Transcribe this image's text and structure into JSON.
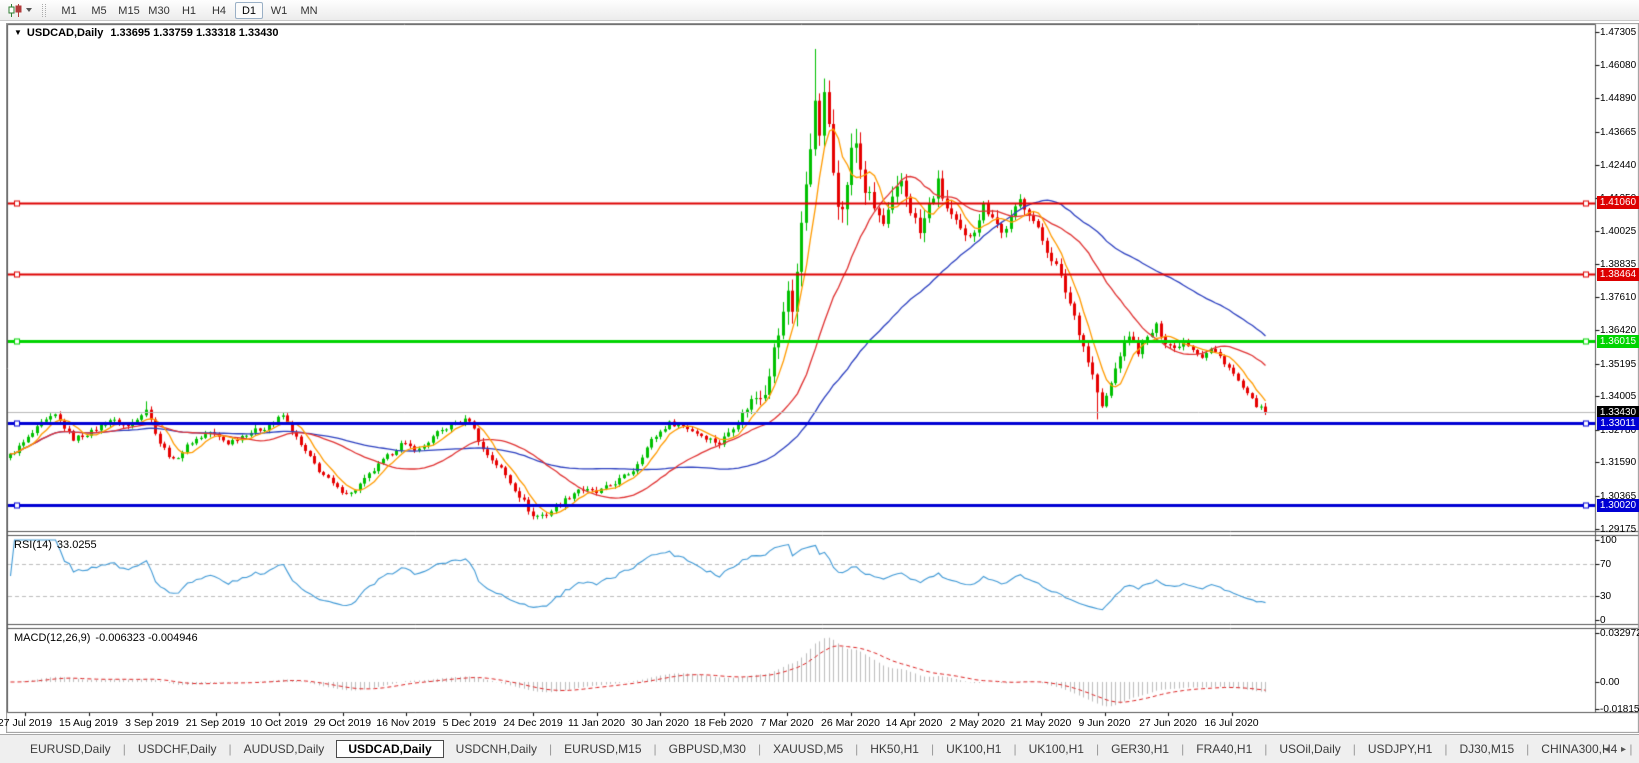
{
  "toolbar": {
    "icon": "candlestick-chart-icon",
    "timeframes": [
      "M1",
      "M5",
      "M15",
      "M30",
      "H1",
      "H4",
      "D1",
      "W1",
      "MN"
    ],
    "active_timeframe": "D1"
  },
  "window_title": {
    "toggle": "▼",
    "symbol": "USDCAD,Daily",
    "ohlc": "1.33695 1.33759 1.33318 1.33430"
  },
  "rsi_label": {
    "name": "RSI(14)",
    "value": "33.0255"
  },
  "macd_label": {
    "name": "MACD(12,26,9)",
    "value": "-0.006323 -0.004946"
  },
  "tabs": {
    "items": [
      "EURUSD,Daily",
      "USDCHF,Daily",
      "AUDUSD,Daily",
      "USDCAD,Daily",
      "USDCNH,Daily",
      "EURUSD,M15",
      "GBPUSD,M30",
      "XAUUSD,M5",
      "HK50,H1",
      "UK100,H1",
      "UK100,H1",
      "GER30,H1",
      "FRA40,H1",
      "USOil,Daily",
      "USDJPY,H1",
      "DJ30,M15",
      "CHINA300,H4"
    ],
    "active": "USDCAD,Daily",
    "separator": "|",
    "scroll_left": "◂",
    "scroll_right": "▸"
  },
  "chart_data": {
    "type": "candlestick",
    "title": "USDCAD,Daily",
    "ohlc_header": {
      "open": "1.33695",
      "high": "1.33759",
      "low": "1.33318",
      "close": "1.33430"
    },
    "y_tick_labels": [
      "1.47305",
      "1.46080",
      "1.44890",
      "1.43665",
      "1.42440",
      "1.41250",
      "1.40025",
      "1.38835",
      "1.37610",
      "1.36420",
      "1.35195",
      "1.34005",
      "1.32780",
      "1.31590",
      "1.30365",
      "1.29175"
    ],
    "x_tick_labels": [
      "27 Jul 2019",
      "15 Aug 2019",
      "3 Sep 2019",
      "21 Sep 2019",
      "10 Oct 2019",
      "29 Oct 2019",
      "16 Nov 2019",
      "5 Dec 2019",
      "24 Dec 2019",
      "11 Jan 2020",
      "30 Jan 2020",
      "18 Feb 2020",
      "7 Mar 2020",
      "26 Mar 2020",
      "14 Apr 2020",
      "2 May 2020",
      "21 May 2020",
      "9 Jun 2020",
      "27 Jun 2020",
      "16 Jul 2020"
    ],
    "rsi_axis_labels": [
      "100",
      "70",
      "30",
      "0"
    ],
    "macd_axis_labels": [
      "0.032972",
      "0.00",
      "-0.018154"
    ],
    "horizontal_lines": [
      {
        "price": 1.4106,
        "label": "1.41060",
        "color": "#dd0000",
        "width": 2
      },
      {
        "price": 1.38464,
        "label": "1.38464",
        "color": "#dd0000",
        "width": 2
      },
      {
        "price": 1.36015,
        "label": "1.36015",
        "color": "#00d400",
        "width": 3
      },
      {
        "price": 1.33011,
        "label": "1.33011",
        "color": "#0000d4",
        "width": 3
      },
      {
        "price": 1.3002,
        "label": "1.30020",
        "color": "#0000d4",
        "width": 3
      }
    ],
    "bid_line": {
      "price": 1.3343,
      "label": "1.33430",
      "line_color": "#b8b8b8",
      "label_bg": "#000000"
    },
    "candle_count": 277,
    "first_open": 1.3175,
    "last_close": 1.3343,
    "close_keypoints": [
      [
        0,
        1.3185
      ],
      [
        3,
        1.323
      ],
      [
        7,
        1.33
      ],
      [
        10,
        1.333
      ],
      [
        14,
        1.3245
      ],
      [
        18,
        1.327
      ],
      [
        22,
        1.3315
      ],
      [
        26,
        1.329
      ],
      [
        30,
        1.3355
      ],
      [
        33,
        1.323
      ],
      [
        36,
        1.3165
      ],
      [
        40,
        1.3235
      ],
      [
        44,
        1.327
      ],
      [
        48,
        1.323
      ],
      [
        52,
        1.3265
      ],
      [
        56,
        1.3285
      ],
      [
        60,
        1.333
      ],
      [
        64,
        1.322
      ],
      [
        68,
        1.313
      ],
      [
        72,
        1.3062
      ],
      [
        75,
        1.3045
      ],
      [
        78,
        1.3095
      ],
      [
        82,
        1.3165
      ],
      [
        86,
        1.3225
      ],
      [
        90,
        1.3205
      ],
      [
        94,
        1.3265
      ],
      [
        98,
        1.3305
      ],
      [
        101,
        1.3315
      ],
      [
        104,
        1.3205
      ],
      [
        108,
        1.3135
      ],
      [
        112,
        1.304
      ],
      [
        115,
        1.2962
      ],
      [
        118,
        1.297
      ],
      [
        121,
        1.3008
      ],
      [
        125,
        1.3062
      ],
      [
        129,
        1.3048
      ],
      [
        133,
        1.3085
      ],
      [
        137,
        1.313
      ],
      [
        141,
        1.324
      ],
      [
        145,
        1.3302
      ],
      [
        148,
        1.3292
      ],
      [
        152,
        1.3258
      ],
      [
        156,
        1.3228
      ],
      [
        160,
        1.3312
      ],
      [
        163,
        1.3385
      ],
      [
        166,
        1.3425
      ],
      [
        168,
        1.3565
      ],
      [
        170,
        1.3695
      ],
      [
        171,
        1.379
      ],
      [
        172,
        1.3725
      ],
      [
        173,
        1.3855
      ],
      [
        174,
        1.4015
      ],
      [
        175,
        1.4185
      ],
      [
        176,
        1.4335
      ],
      [
        177,
        1.4445
      ],
      [
        178,
        1.4365
      ],
      [
        179,
        1.448
      ],
      [
        180,
        1.4395
      ],
      [
        181,
        1.4255
      ],
      [
        182,
        1.4135
      ],
      [
        183,
        1.4065
      ],
      [
        184,
        1.4185
      ],
      [
        185,
        1.4285
      ],
      [
        186,
        1.4325
      ],
      [
        187,
        1.4235
      ],
      [
        188,
        1.4155
      ],
      [
        190,
        1.4085
      ],
      [
        192,
        1.4025
      ],
      [
        194,
        1.4105
      ],
      [
        196,
        1.4185
      ],
      [
        198,
        1.4085
      ],
      [
        200,
        1.3995
      ],
      [
        202,
        1.4095
      ],
      [
        204,
        1.4175
      ],
      [
        206,
        1.4085
      ],
      [
        208,
        1.4025
      ],
      [
        210,
        1.3975
      ],
      [
        212,
        1.4015
      ],
      [
        214,
        1.4095
      ],
      [
        216,
        1.4065
      ],
      [
        218,
        1.3995
      ],
      [
        220,
        1.4045
      ],
      [
        222,
        1.4115
      ],
      [
        224,
        1.4075
      ],
      [
        226,
        1.4005
      ],
      [
        228,
        1.3935
      ],
      [
        230,
        1.3875
      ],
      [
        232,
        1.3785
      ],
      [
        234,
        1.3695
      ],
      [
        236,
        1.3585
      ],
      [
        238,
        1.3475
      ],
      [
        240,
        1.3355
      ],
      [
        242,
        1.3445
      ],
      [
        244,
        1.3555
      ],
      [
        246,
        1.3625
      ],
      [
        248,
        1.3565
      ],
      [
        250,
        1.3612
      ],
      [
        252,
        1.3655
      ],
      [
        254,
        1.36
      ],
      [
        256,
        1.3575
      ],
      [
        258,
        1.3605
      ],
      [
        260,
        1.3575
      ],
      [
        262,
        1.3545
      ],
      [
        264,
        1.3572
      ],
      [
        266,
        1.3545
      ],
      [
        268,
        1.3505
      ],
      [
        270,
        1.3455
      ],
      [
        272,
        1.3405
      ],
      [
        274,
        1.3368
      ],
      [
        276,
        1.3343
      ]
    ],
    "volatility_keypoints": [
      [
        0,
        0.0016
      ],
      [
        100,
        0.0016
      ],
      [
        112,
        0.0022
      ],
      [
        120,
        0.0018
      ],
      [
        150,
        0.0014
      ],
      [
        160,
        0.0022
      ],
      [
        165,
        0.0045
      ],
      [
        172,
        0.0065
      ],
      [
        177,
        0.0075
      ],
      [
        183,
        0.008
      ],
      [
        190,
        0.0055
      ],
      [
        200,
        0.0045
      ],
      [
        215,
        0.0035
      ],
      [
        228,
        0.0028
      ],
      [
        238,
        0.0034
      ],
      [
        246,
        0.0024
      ],
      [
        258,
        0.0018
      ],
      [
        268,
        0.0016
      ],
      [
        276,
        0.0013
      ]
    ],
    "extremes": [
      {
        "i": 30,
        "high": 1.3382
      },
      {
        "i": 115,
        "low": 1.2951
      },
      {
        "i": 177,
        "high": 1.4668
      },
      {
        "i": 179,
        "high": 1.456
      },
      {
        "i": 239,
        "low": 1.3316
      },
      {
        "i": 276,
        "high": 1.3376,
        "low": 1.3332
      }
    ],
    "moving_averages": [
      {
        "period": 55,
        "color": "#2b3fc0"
      },
      {
        "period": 24,
        "color": "#e03232"
      },
      {
        "period": 6,
        "color": "#ff9b00"
      }
    ],
    "indicators": {
      "rsi": {
        "period": 14,
        "color": "#3f99d6",
        "levels": [
          70,
          30
        ],
        "range": [
          0,
          100
        ]
      },
      "macd": {
        "fast": 12,
        "slow": 26,
        "signal": 9,
        "histogram_color": "#bdbdbd",
        "signal_color": "#dd2222",
        "value_range": [
          -0.018154,
          0.032972
        ]
      }
    },
    "colors": {
      "up": "#00c000",
      "down": "#e60000",
      "background": "#ffffff"
    }
  }
}
